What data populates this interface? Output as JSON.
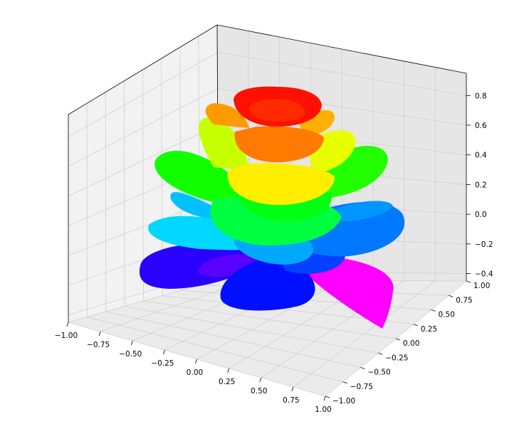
{
  "chart_data": {
    "type": "surface3d",
    "title": "",
    "xlabel": "",
    "ylabel": "",
    "zlabel": "",
    "xlim": [
      -1.0,
      1.0
    ],
    "ylim": [
      -1.0,
      1.0
    ],
    "zlim": [
      -0.45,
      0.95
    ],
    "x_ticks": [
      "−1.00",
      "−0.75",
      "−0.50",
      "−0.25",
      "0.00",
      "0.25",
      "0.50",
      "0.75",
      "1.00"
    ],
    "y_ticks": [
      "−1.00",
      "−0.75",
      "−0.50",
      "−0.25",
      "0.00",
      "0.25",
      "0.50",
      "0.75",
      "1.00"
    ],
    "z_ticks": [
      "−0.4",
      "−0.2",
      "0.0",
      "0.2",
      "0.4",
      "0.6",
      "0.8"
    ],
    "colormap": "gist_rainbow",
    "colors": [
      "#ff00ff",
      "#0000ff",
      "#00ffff",
      "#00ff00",
      "#ffff00",
      "#ff8000",
      "#ff0000"
    ],
    "grid": true
  }
}
